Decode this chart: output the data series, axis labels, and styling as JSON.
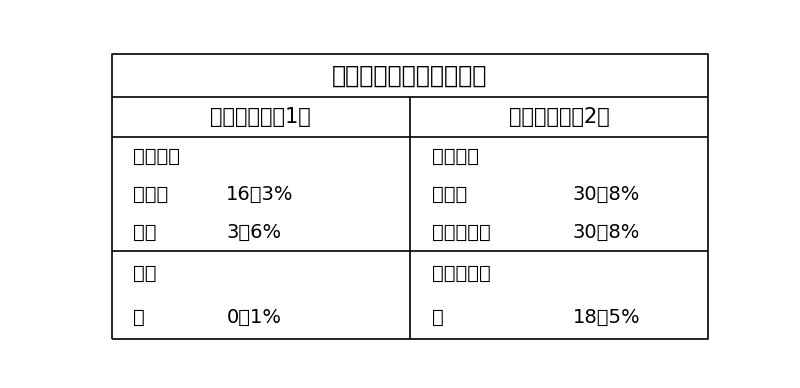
{
  "title": "硬切削废液（含有成分）",
  "col1_header": "固体成分（注1）",
  "col2_header": "液体成分（注2）",
  "left_section1_header": "有用成分",
  "right_section1_header": "回收成分",
  "left_items1": [
    {
      "label": "硬切屑",
      "value": "16．3%"
    },
    {
      "label": "磨粒",
      "value": "3．6%"
    }
  ],
  "right_items1": [
    {
      "label": "二甘醒",
      "value": "30．8%"
    },
    {
      "label": "丙二醇甲醚",
      "value": "30．8%"
    }
  ],
  "left_section2_header": "杂质",
  "right_section2_header": "不需要成分",
  "left_items2": [
    {
      "label": "鐵",
      "value": "0．1%"
    }
  ],
  "right_items2": [
    {
      "label": "水",
      "value": "18．5%"
    }
  ],
  "bg_color": "#ffffff",
  "border_color": "#000000",
  "text_color": "#000000",
  "title_fontsize": 17,
  "header_fontsize": 15,
  "cell_fontsize": 14
}
